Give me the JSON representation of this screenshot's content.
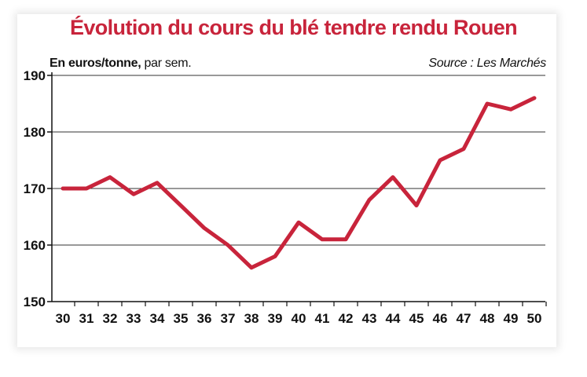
{
  "header": {
    "title": "Évolution du cours du blé tendre rendu Rouen",
    "unit_bold": "En euros/tonne,",
    "unit_rest": " par sem.",
    "source": "Source : Les Marchés"
  },
  "colors": {
    "line": "#c8243b",
    "title": "#c8243b",
    "grid": "#333333"
  },
  "chart_data": {
    "type": "line",
    "title": "Évolution du cours du blé tendre rendu Rouen",
    "xlabel": "",
    "ylabel": "En euros/tonne, par sem.",
    "x": [
      30,
      31,
      32,
      33,
      34,
      35,
      36,
      37,
      38,
      39,
      40,
      41,
      42,
      43,
      44,
      45,
      46,
      47,
      48,
      49,
      50
    ],
    "series": [
      {
        "values": [
          170,
          170,
          172,
          169,
          171,
          167,
          163,
          160,
          156,
          158,
          164,
          161,
          161,
          168,
          172,
          167,
          175,
          177,
          185,
          184,
          186
        ]
      }
    ],
    "ylim": [
      150,
      190
    ],
    "yticks": [
      150,
      160,
      170,
      180,
      190
    ],
    "grid": "horizontal",
    "legend": "none"
  }
}
